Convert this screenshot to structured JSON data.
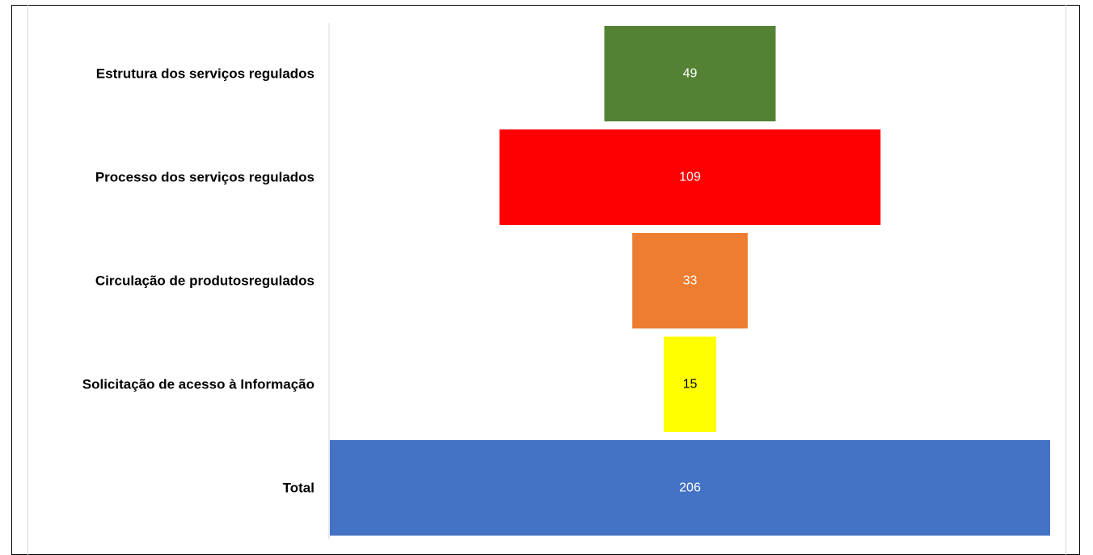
{
  "chart_data": {
    "type": "bar",
    "orientation": "horizontal-centered",
    "categories": [
      "Estrutura dos serviços regulados",
      "Processo dos serviços regulados",
      "Circulação de produtosregulados",
      "Solicitação de acesso à Informação",
      "Total"
    ],
    "values": [
      49,
      109,
      33,
      15,
      206
    ],
    "colors": [
      "#548235",
      "#ff0000",
      "#ed7d31",
      "#ffff00",
      "#4472c4"
    ],
    "label_colors": [
      "#ffffff",
      "#ffffff",
      "#ffffff",
      "#000000",
      "#ffffff"
    ],
    "xlim": [
      0,
      206
    ],
    "grid": false,
    "legend": "none"
  }
}
